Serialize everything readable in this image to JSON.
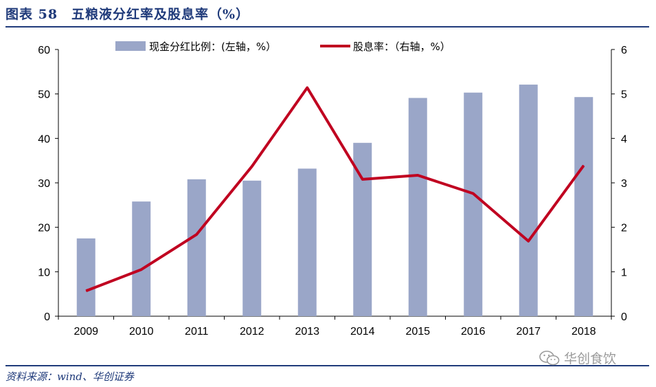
{
  "header": {
    "title": "图表 58　五粮液分红率及股息率（%）"
  },
  "footer": {
    "source": "资料来源：wind、华创证券",
    "watermark": "华创食饮"
  },
  "colors": {
    "bar": "#9aa6c8",
    "line": "#c00020",
    "rule": "#1f3a7a"
  },
  "chart_data": {
    "type": "bar+line",
    "categories": [
      "2009",
      "2010",
      "2011",
      "2012",
      "2013",
      "2014",
      "2015",
      "2016",
      "2017",
      "2018"
    ],
    "series": [
      {
        "name": "现金分红比例：(左轴，%）",
        "type": "bar",
        "axis": "left",
        "values": [
          17.5,
          25.8,
          30.8,
          30.5,
          33.2,
          39.0,
          49.1,
          50.3,
          52.1,
          49.3
        ]
      },
      {
        "name": "股息率：（右轴，%）",
        "type": "line",
        "axis": "right",
        "values": [
          0.57,
          1.05,
          1.84,
          3.37,
          5.14,
          3.08,
          3.17,
          2.76,
          1.69,
          3.39
        ]
      }
    ],
    "y_left": {
      "lim": [
        0,
        60
      ],
      "ticks": [
        "0",
        "10",
        "20",
        "30",
        "40",
        "50",
        "60"
      ]
    },
    "y_right": {
      "lim": [
        0,
        6
      ],
      "ticks": [
        "0",
        "1",
        "2",
        "3",
        "4",
        "5",
        "6"
      ]
    },
    "legend": "top"
  }
}
